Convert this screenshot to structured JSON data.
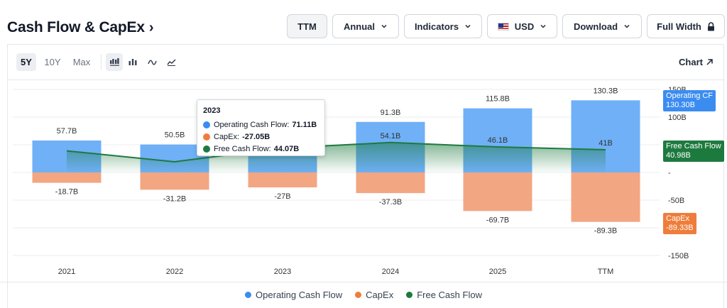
{
  "header": {
    "title": "Cash Flow & CapEx",
    "title_chevron": "›"
  },
  "toolbar": {
    "ttm_label": "TTM",
    "period_label": "Annual",
    "indicators_label": "Indicators",
    "currency_label": "USD",
    "download_label": "Download",
    "full_width_label": "Full Width"
  },
  "ranges": {
    "5y": "5Y",
    "10y": "10Y",
    "max": "Max",
    "active": "5Y"
  },
  "chart_link_label": "Chart",
  "tooltip": {
    "title": "2023",
    "rows": [
      {
        "label": "Operating Cash Flow:",
        "value": "71.11B"
      },
      {
        "label": "CapEx:",
        "value": "-27.05B"
      },
      {
        "label": "Free Cash Flow:",
        "value": "44.07B"
      }
    ]
  },
  "tags": {
    "ocf_name": "Operating CF",
    "ocf_value": "130.30B",
    "fcf_name": "Free Cash Flow",
    "fcf_value": "40.98B",
    "capex_name": "CapEx",
    "capex_value": "-89.33B"
  },
  "legend": {
    "ocf": "Operating Cash Flow",
    "capex": "CapEx",
    "fcf": "Free Cash Flow"
  },
  "colors": {
    "ocf": "#6fb0f7",
    "ocf_dot": "#3b8cf0",
    "capex": "#f3a682",
    "capex_dot": "#ee7d3b",
    "fcf": "#1d7a3e"
  },
  "chart_data": {
    "type": "bar",
    "title": "Cash Flow & CapEx",
    "categories": [
      "2021",
      "2022",
      "2023",
      "2024",
      "2025",
      "TTM"
    ],
    "series": [
      {
        "name": "Operating Cash Flow",
        "type": "bar",
        "values": [
          57.7,
          50.5,
          71.11,
          91.3,
          115.8,
          130.3
        ],
        "labels": [
          "57.7B",
          "50.5B",
          "",
          "91.3B",
          "115.8B",
          "130.3B"
        ]
      },
      {
        "name": "CapEx",
        "type": "bar",
        "values": [
          -18.7,
          -31.2,
          -27.0,
          -37.3,
          -69.7,
          -89.3
        ],
        "labels": [
          "-18.7B",
          "-31.2B",
          "-27B",
          "-37.3B",
          "-69.7B",
          "-89.3B"
        ]
      },
      {
        "name": "Free Cash Flow",
        "type": "area",
        "values": [
          39.0,
          19.3,
          44.07,
          54.1,
          46.1,
          41.0
        ],
        "labels": [
          "",
          "",
          "",
          "54.1B",
          "46.1B",
          "41B"
        ]
      }
    ],
    "y_ticks": [
      "150B",
      "100B",
      "-",
      "-50B",
      "-150B"
    ],
    "ylim": [
      -150,
      150
    ],
    "grid": true,
    "legend_position": "bottom"
  }
}
